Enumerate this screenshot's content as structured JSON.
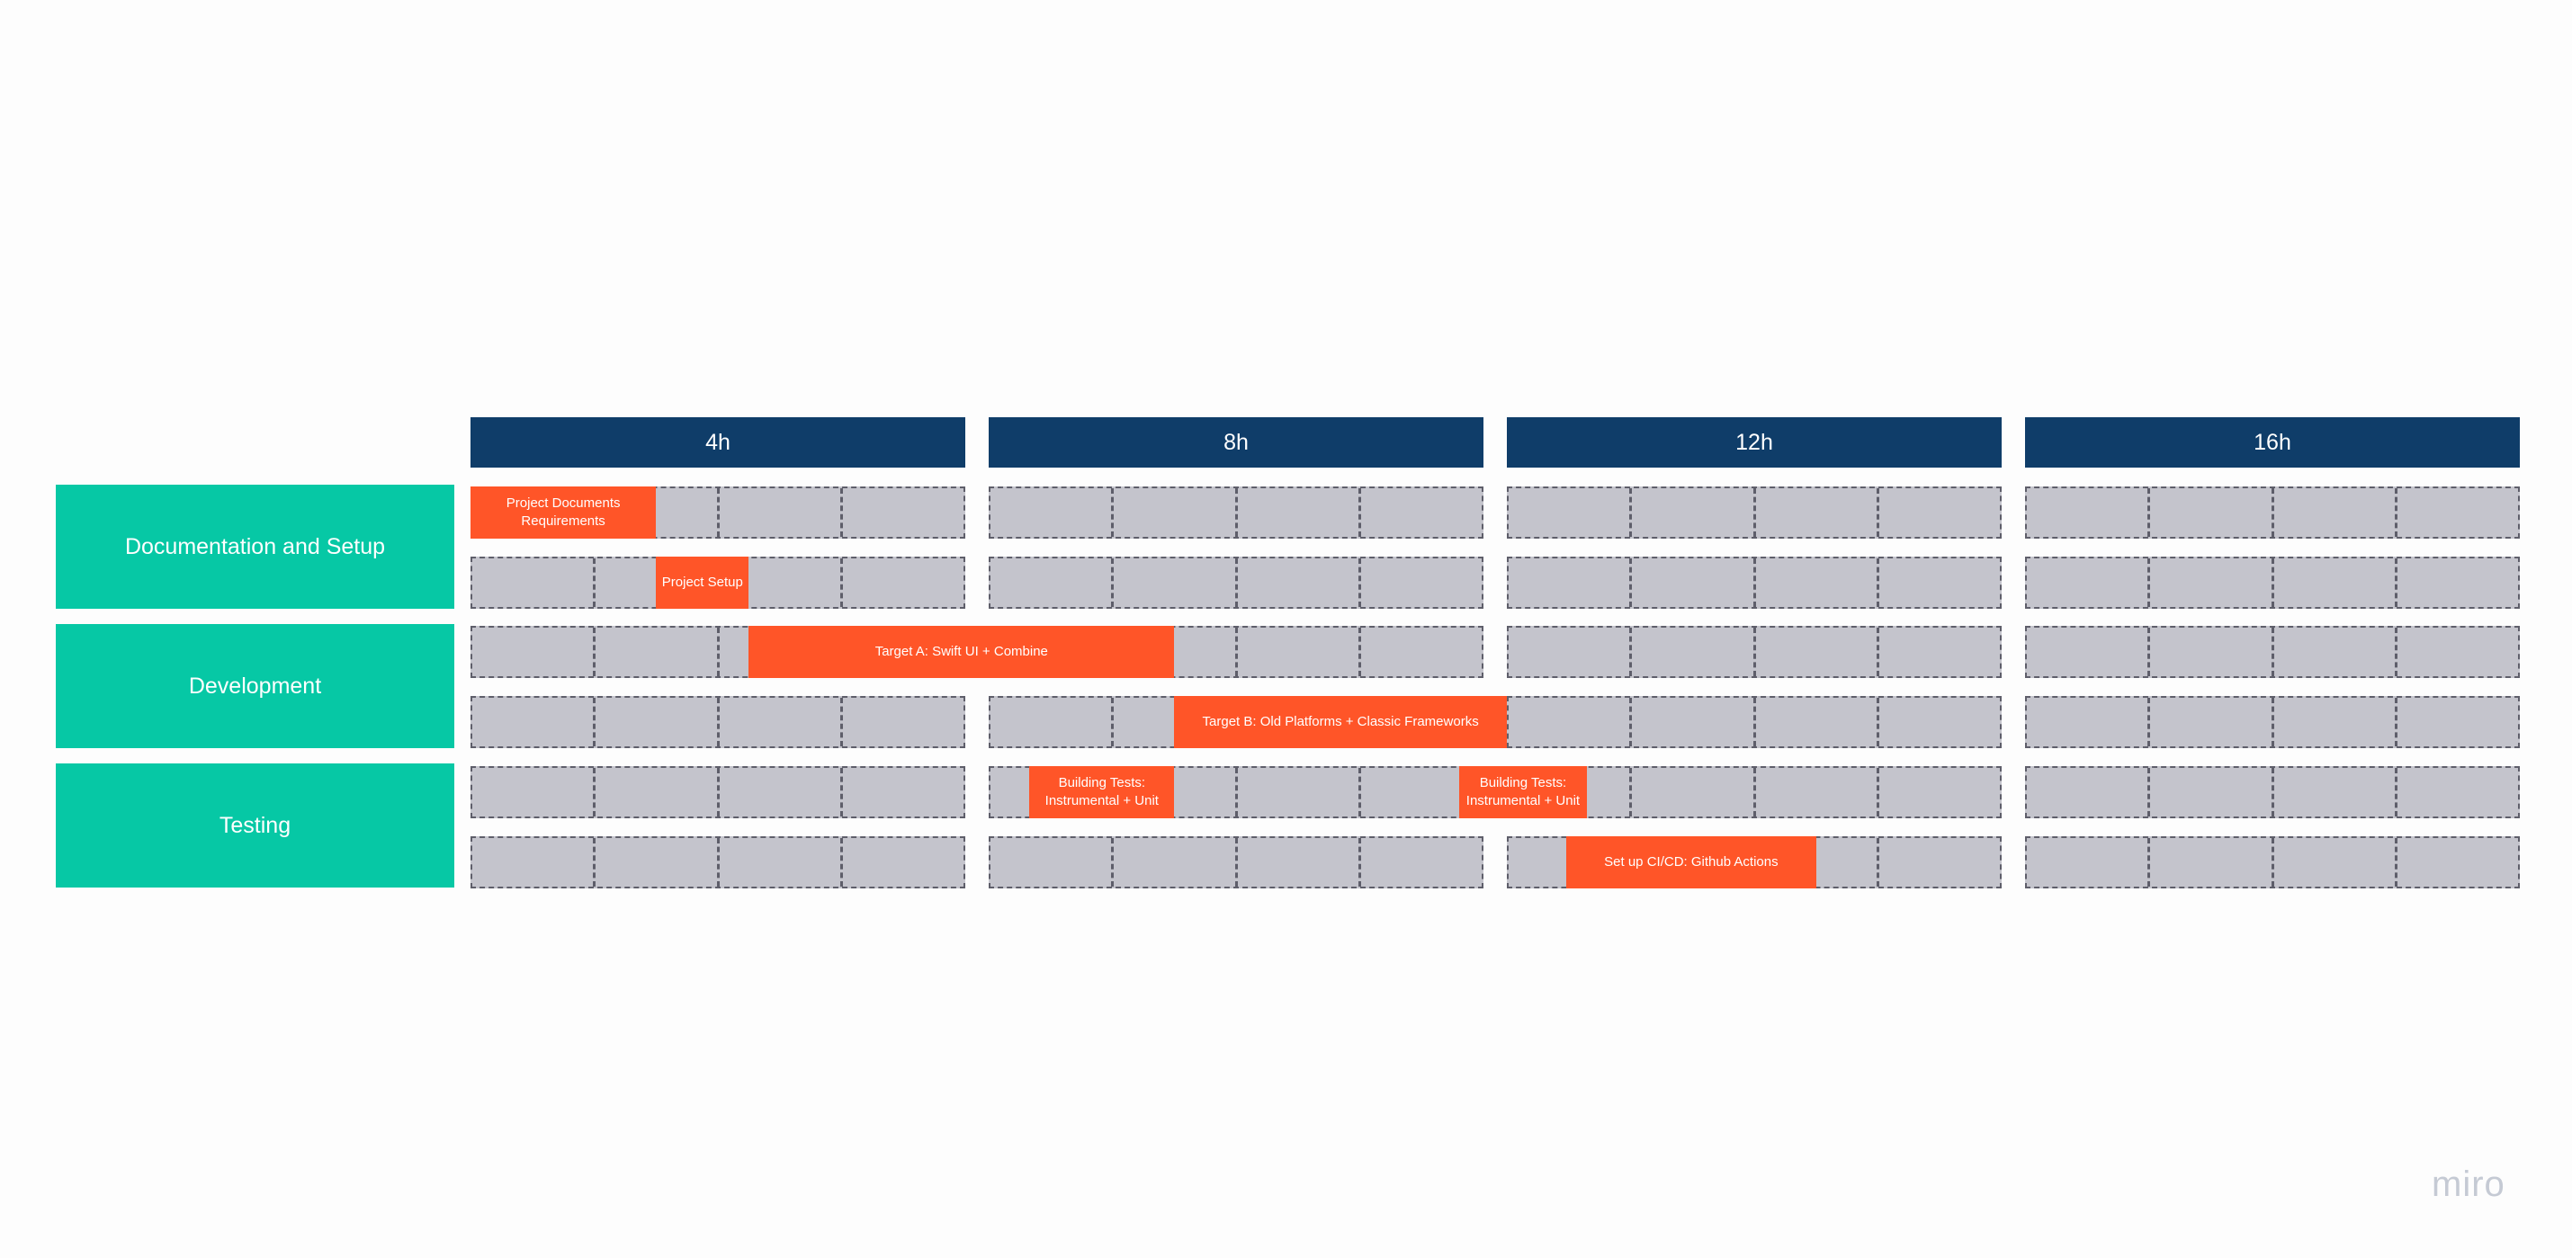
{
  "colors": {
    "header": "#0f3d69",
    "category": "#06c8a5",
    "lane": "#c4c4cc",
    "task": "#ff5528",
    "logo": "#c5cad4"
  },
  "columns": [
    {
      "label": "4h"
    },
    {
      "label": "8h"
    },
    {
      "label": "12h"
    },
    {
      "label": "16h"
    }
  ],
  "categories": [
    {
      "label": "Documentation and Setup"
    },
    {
      "label": "Development"
    },
    {
      "label": "Testing"
    }
  ],
  "cells_per_column": 4,
  "lanes_count": 6,
  "tasks": [
    {
      "label": "Project Documents\nRequirements",
      "lane": 0,
      "start": 0,
      "end": 1.5
    },
    {
      "label": "Project Setup",
      "lane": 1,
      "start": 1.5,
      "end": 2.25
    },
    {
      "label": "Target A: Swift UI + Combine",
      "lane": 2,
      "start": 2.25,
      "end": 5.5
    },
    {
      "label": "Target B: Old Platforms + Classic Frameworks",
      "lane": 3,
      "start": 5.5,
      "end": 8
    },
    {
      "label": "Building Tests:\nInstrumental + Unit",
      "lane": 4,
      "start": 4.33,
      "end": 5.5
    },
    {
      "label": "Building Tests:\nInstrumental + Unit",
      "lane": 4,
      "start": 7.8,
      "end": 8.65
    },
    {
      "label": "Set up  CI/CD: Github Actions",
      "lane": 5,
      "start": 8.48,
      "end": 10.5
    }
  ],
  "logo": "miro"
}
